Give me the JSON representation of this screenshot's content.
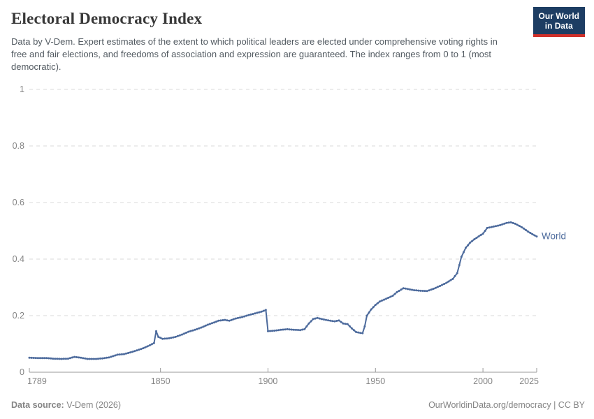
{
  "header": {
    "title": "Electoral Democracy Index",
    "subtitle": "Data by V-Dem. Expert estimates of the extent to which political leaders are elected under comprehensive voting rights in free and fair elections, and freedoms of association and expression are guaranteed. The index ranges from 0 to 1 (most democratic).",
    "logo": {
      "line1": "Our World",
      "line2": "in Data"
    }
  },
  "chart_data": {
    "type": "line",
    "title": "Electoral Democracy Index",
    "xlabel": "",
    "ylabel": "",
    "xlim": [
      1789,
      2025
    ],
    "ylim": [
      0,
      1
    ],
    "x_ticks": [
      1789,
      1850,
      1900,
      1950,
      2000,
      2025
    ],
    "y_ticks": [
      0,
      0.2,
      0.4,
      0.6,
      0.8,
      1
    ],
    "grid": "horizontal-dashed",
    "legend_position": "end-of-line",
    "end_label": "World",
    "series": [
      {
        "name": "World",
        "color": "#4C6A9C",
        "points": [
          [
            1789,
            0.051
          ],
          [
            1793,
            0.05
          ],
          [
            1797,
            0.05
          ],
          [
            1800,
            0.048
          ],
          [
            1804,
            0.047
          ],
          [
            1807,
            0.048
          ],
          [
            1810,
            0.054
          ],
          [
            1813,
            0.051
          ],
          [
            1816,
            0.047
          ],
          [
            1820,
            0.047
          ],
          [
            1823,
            0.049
          ],
          [
            1826,
            0.052
          ],
          [
            1830,
            0.062
          ],
          [
            1833,
            0.064
          ],
          [
            1836,
            0.07
          ],
          [
            1839,
            0.077
          ],
          [
            1842,
            0.085
          ],
          [
            1845,
            0.095
          ],
          [
            1847,
            0.103
          ],
          [
            1848,
            0.145
          ],
          [
            1849,
            0.125
          ],
          [
            1851,
            0.118
          ],
          [
            1854,
            0.12
          ],
          [
            1857,
            0.125
          ],
          [
            1860,
            0.133
          ],
          [
            1863,
            0.143
          ],
          [
            1866,
            0.15
          ],
          [
            1869,
            0.158
          ],
          [
            1872,
            0.168
          ],
          [
            1875,
            0.176
          ],
          [
            1877,
            0.182
          ],
          [
            1880,
            0.185
          ],
          [
            1882,
            0.182
          ],
          [
            1885,
            0.19
          ],
          [
            1888,
            0.195
          ],
          [
            1891,
            0.202
          ],
          [
            1894,
            0.208
          ],
          [
            1897,
            0.214
          ],
          [
            1899,
            0.22
          ],
          [
            1900,
            0.145
          ],
          [
            1903,
            0.147
          ],
          [
            1906,
            0.15
          ],
          [
            1909,
            0.152
          ],
          [
            1912,
            0.15
          ],
          [
            1915,
            0.149
          ],
          [
            1917,
            0.152
          ],
          [
            1919,
            0.172
          ],
          [
            1921,
            0.188
          ],
          [
            1923,
            0.192
          ],
          [
            1925,
            0.188
          ],
          [
            1927,
            0.185
          ],
          [
            1929,
            0.182
          ],
          [
            1931,
            0.18
          ],
          [
            1933,
            0.183
          ],
          [
            1935,
            0.172
          ],
          [
            1937,
            0.17
          ],
          [
            1939,
            0.155
          ],
          [
            1941,
            0.142
          ],
          [
            1943,
            0.139
          ],
          [
            1944,
            0.138
          ],
          [
            1945,
            0.162
          ],
          [
            1946,
            0.2
          ],
          [
            1948,
            0.222
          ],
          [
            1950,
            0.238
          ],
          [
            1952,
            0.25
          ],
          [
            1955,
            0.26
          ],
          [
            1958,
            0.27
          ],
          [
            1960,
            0.283
          ],
          [
            1963,
            0.297
          ],
          [
            1965,
            0.294
          ],
          [
            1968,
            0.29
          ],
          [
            1971,
            0.288
          ],
          [
            1974,
            0.287
          ],
          [
            1977,
            0.295
          ],
          [
            1980,
            0.305
          ],
          [
            1983,
            0.316
          ],
          [
            1986,
            0.33
          ],
          [
            1988,
            0.35
          ],
          [
            1990,
            0.408
          ],
          [
            1992,
            0.44
          ],
          [
            1994,
            0.458
          ],
          [
            1996,
            0.47
          ],
          [
            1998,
            0.48
          ],
          [
            2000,
            0.49
          ],
          [
            2002,
            0.51
          ],
          [
            2005,
            0.515
          ],
          [
            2008,
            0.52
          ],
          [
            2011,
            0.528
          ],
          [
            2013,
            0.53
          ],
          [
            2015,
            0.525
          ],
          [
            2017,
            0.517
          ],
          [
            2019,
            0.508
          ],
          [
            2021,
            0.497
          ],
          [
            2023,
            0.488
          ],
          [
            2025,
            0.48
          ]
        ]
      }
    ]
  },
  "footer": {
    "source_label": "Data source:",
    "source_value": "V-Dem (2026)",
    "credit": "OurWorldinData.org/democracy | CC BY"
  },
  "colors": {
    "line": "#4C6A9C",
    "grid": "#d9d9d9",
    "axis": "#9a9a9a",
    "tick_label": "#858585",
    "title": "#383838",
    "subtitle": "#525a61",
    "footer_text": "#858585",
    "logo_bg": "#1d3d63",
    "logo_accent": "#d0302a",
    "background": "#ffffff"
  }
}
